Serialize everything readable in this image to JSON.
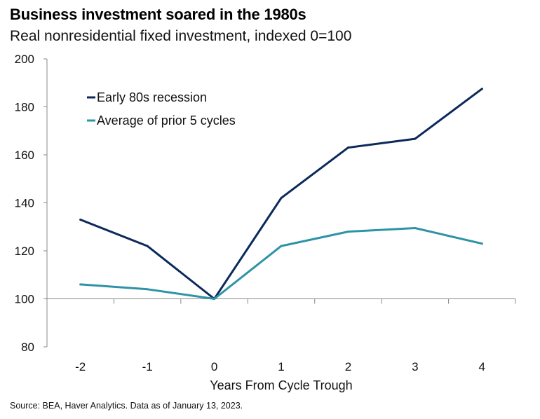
{
  "chart_data": {
    "type": "line",
    "title": "Business investment soared in the 1980s",
    "subtitle": "Real nonresidential fixed investment, indexed 0=100",
    "xlabel": "Years From Cycle Trough",
    "ylabel": "",
    "categories": [
      "-2",
      "-1",
      "0",
      "1",
      "2",
      "3",
      "4"
    ],
    "ylim": [
      80,
      200
    ],
    "yticks": [
      "80",
      "100",
      "120",
      "140",
      "160",
      "180",
      "200"
    ],
    "legend_position": "top-left",
    "series": [
      {
        "name": "Early 80s recession",
        "color": "#0b2a5b",
        "values": [
          133,
          122,
          100,
          142,
          163,
          166.7,
          187.5
        ]
      },
      {
        "name": "Average of prior 5 cycles",
        "color": "#2e93a6",
        "values": [
          106,
          104,
          100,
          122,
          128,
          129.5,
          123
        ]
      }
    ],
    "source": "Source: BEA, Haver Analytics. Data as of January 13, 2023."
  }
}
